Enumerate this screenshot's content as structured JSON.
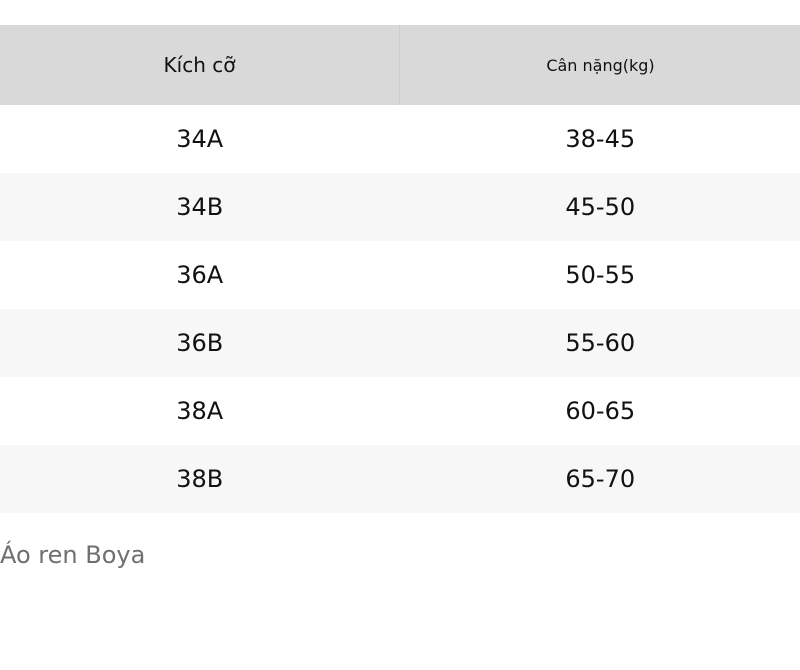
{
  "table": {
    "headers": [
      "Kích cỡ",
      "Cân nặng(kg)"
    ],
    "rows": [
      [
        "34A",
        "38-45"
      ],
      [
        "34B",
        "45-50"
      ],
      [
        "36A",
        "50-55"
      ],
      [
        "36B",
        "55-60"
      ],
      [
        "38A",
        "60-65"
      ],
      [
        "38B",
        "65-70"
      ]
    ]
  },
  "caption": "Áo ren Boya",
  "colors": {
    "header_bg": "#d9d9d9",
    "stripe_bg": "#f7f7f7",
    "caption_text": "#6f6f6f"
  }
}
